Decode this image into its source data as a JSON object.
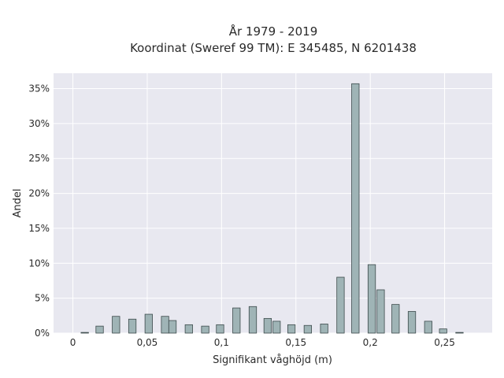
{
  "chart_data": {
    "type": "bar",
    "title": "År 1979 - 2019",
    "subtitle": "Koordinat (Sweref 99 TM): E 345485, N 6201438",
    "xlabel": "Signifikant våghöjd (m)",
    "ylabel": "Andel",
    "xlim": [
      -0.013,
      0.282
    ],
    "ylim": [
      0,
      37.2
    ],
    "x_ticks": [
      {
        "value": 0,
        "label": "0"
      },
      {
        "value": 0.05,
        "label": "0,05"
      },
      {
        "value": 0.1,
        "label": "0,1"
      },
      {
        "value": 0.15,
        "label": "0,15"
      },
      {
        "value": 0.2,
        "label": "0,2"
      },
      {
        "value": 0.25,
        "label": "0,25"
      }
    ],
    "y_ticks": [
      {
        "value": 0,
        "label": "0%"
      },
      {
        "value": 5,
        "label": "5%"
      },
      {
        "value": 10,
        "label": "10%"
      },
      {
        "value": 15,
        "label": "15%"
      },
      {
        "value": 20,
        "label": "20%"
      },
      {
        "value": 25,
        "label": "25%"
      },
      {
        "value": 30,
        "label": "30%"
      },
      {
        "value": 35,
        "label": "35%"
      }
    ],
    "bar_width": 0.005,
    "grid": true,
    "colors": {
      "bar_fill": "#9fb4b6",
      "bar_stroke": "#3c4a4b",
      "plot_bg": "#e8e8f0",
      "grid": "#ffffff"
    },
    "bars": [
      {
        "x": 0.008,
        "y": 0.1
      },
      {
        "x": 0.018,
        "y": 1.0
      },
      {
        "x": 0.029,
        "y": 2.4
      },
      {
        "x": 0.04,
        "y": 2.0
      },
      {
        "x": 0.051,
        "y": 2.7
      },
      {
        "x": 0.062,
        "y": 2.4
      },
      {
        "x": 0.067,
        "y": 1.8
      },
      {
        "x": 0.078,
        "y": 1.2
      },
      {
        "x": 0.089,
        "y": 1.0
      },
      {
        "x": 0.099,
        "y": 1.2
      },
      {
        "x": 0.11,
        "y": 3.6
      },
      {
        "x": 0.121,
        "y": 3.8
      },
      {
        "x": 0.131,
        "y": 2.1
      },
      {
        "x": 0.137,
        "y": 1.7
      },
      {
        "x": 0.147,
        "y": 1.2
      },
      {
        "x": 0.158,
        "y": 1.1
      },
      {
        "x": 0.169,
        "y": 1.3
      },
      {
        "x": 0.18,
        "y": 8.0
      },
      {
        "x": 0.19,
        "y": 35.7
      },
      {
        "x": 0.201,
        "y": 9.8
      },
      {
        "x": 0.207,
        "y": 6.2
      },
      {
        "x": 0.217,
        "y": 4.1
      },
      {
        "x": 0.228,
        "y": 3.1
      },
      {
        "x": 0.239,
        "y": 1.7
      },
      {
        "x": 0.249,
        "y": 0.6
      },
      {
        "x": 0.26,
        "y": 0.1
      }
    ]
  }
}
